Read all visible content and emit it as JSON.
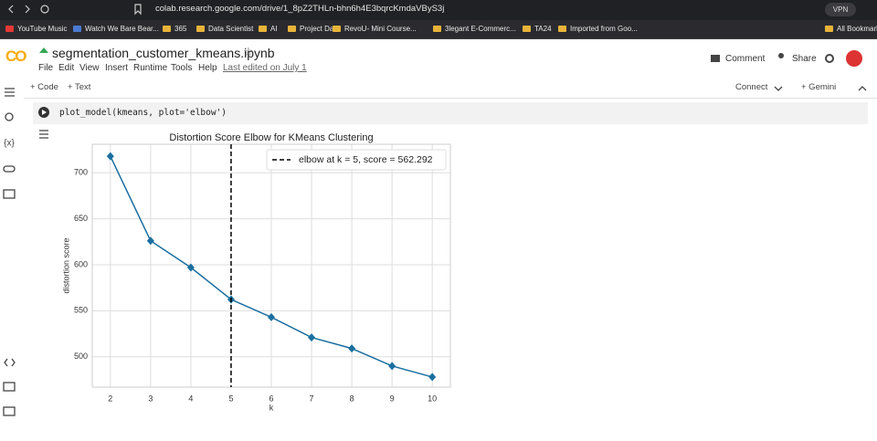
{
  "browser": {
    "url": "colab.research.google.com/drive/1_8pZ2THLn-bhn6h4E3bqrcKmdaVByS3j",
    "vpn": "VPN",
    "bookmarks": [
      "YouTube Music",
      "Watch We Bare Bear...",
      "365",
      "Data Scientist",
      "AI",
      "Project Data",
      "RevoU- Mini Course...",
      "3legant E-Commerc...",
      "TA24",
      "Imported from Goo..."
    ],
    "all_bookmarks": "All Bookmarks"
  },
  "notebook": {
    "logo": "CO",
    "title": "segmentation_customer_kmeans.ipynb",
    "menu": [
      "File",
      "Edit",
      "View",
      "Insert",
      "Runtime",
      "Tools",
      "Help"
    ],
    "last_edited": "Last edited on July 1",
    "comment": "Comment",
    "share": "Share"
  },
  "toolbar": {
    "code": "+ Code",
    "text": "+ Text",
    "connect": "Connect",
    "gemini": "+ Gemini"
  },
  "cell": {
    "code": "plot_model(kmeans, plot='elbow')"
  },
  "chart_data": {
    "type": "line",
    "title": "Distortion Score Elbow for KMeans Clustering",
    "x_label": "k",
    "y_label": "distortion score",
    "x": [
      2,
      3,
      4,
      5,
      6,
      7,
      8,
      9,
      10
    ],
    "series": [
      {
        "color": "#1a6fa0",
        "values": [
          718,
          626,
          597,
          562.292,
          543,
          521,
          509,
          490,
          478
        ]
      }
    ],
    "xlim": [
      1.55,
      10.45
    ],
    "ylim": [
      467,
      731
    ],
    "xticks": [
      2,
      3,
      4,
      5,
      6,
      7,
      8,
      9,
      10
    ],
    "yticks": [
      500,
      550,
      600,
      650,
      700
    ],
    "grid": true,
    "elbow": {
      "x": 5,
      "label": "elbow at k = 5, score = 562.292",
      "color": "#000000"
    }
  }
}
